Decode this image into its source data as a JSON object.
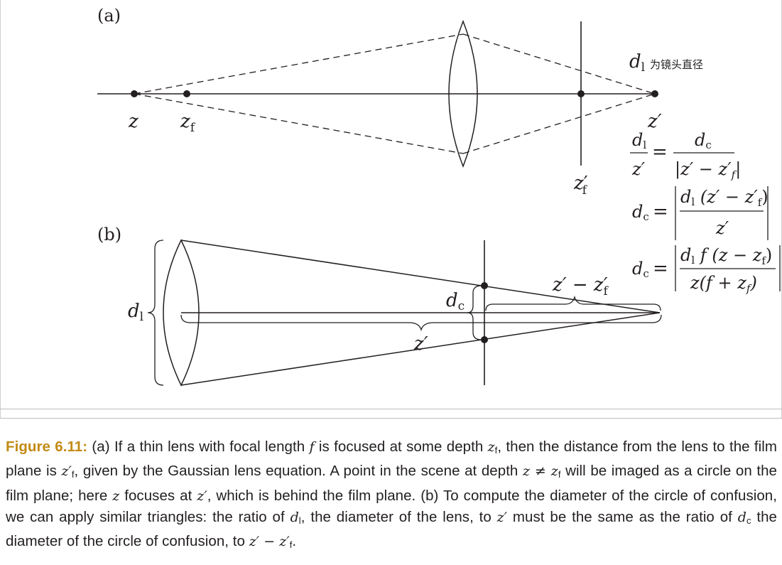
{
  "figure": {
    "panel_a_label": "(a)",
    "panel_b_label": "(b)",
    "point_labels": {
      "z": "z",
      "zf_base": "z",
      "zf_sub": "f",
      "zprime": "z′",
      "zfprime_base": "z",
      "zfprime_prime": "′",
      "zfprime_sub": "f"
    },
    "dl_symbol": "d",
    "dl_sub": "l",
    "dl_annotation": "为镜头直径",
    "equation_1": {
      "lhs_num_base": "d",
      "lhs_num_sub": "l",
      "lhs_den": "z′",
      "equals": "=",
      "rhs_num_base": "d",
      "rhs_num_sub": "c",
      "rhs_den": "|z′ − z′",
      "rhs_den_sub": "f",
      "rhs_den_close": "|"
    },
    "equation_2": {
      "lhs_base": "d",
      "lhs_sub": "c",
      "equals": "=",
      "num": "d",
      "num_sub": "l",
      "num_rest": " (z′ − z′",
      "num_rest_sub": "f",
      "num_close": ")",
      "den": "z′"
    },
    "equation_3": {
      "lhs_base": "d",
      "lhs_sub": "c",
      "equals": "=",
      "num": "d",
      "num_sub": "l",
      "num_rest": " f (z − z",
      "num_rest_sub": "f",
      "num_close": ")",
      "den": "z(f + z",
      "den_sub": "f",
      "den_close": ")"
    },
    "panel_b_labels": {
      "dl": "d",
      "dl_sub": "l",
      "dc": "d",
      "dc_sub": "c",
      "zprime": "z′",
      "zdiff": "z′ − z′",
      "zdiff_sub": "f"
    }
  },
  "caption": {
    "label": "Figure 6.11:",
    "p1": " (a) If a thin lens with focal length ",
    "f": "f",
    "p2": " is focused at some depth ",
    "zf": "z",
    "zf_sub": "f",
    "p3": ", then the distance from the lens to the film plane is ",
    "zfp": "z′",
    "zfp_sub": "f",
    "p4": ", given by the Gaussian lens equation. A point in the scene at depth ",
    "zneq": "z ≠ z",
    "zneq_sub": "f",
    "p5": " will be imaged as a circle on the film plane; here ",
    "z1": "z",
    "p6": " focuses at ",
    "zp1": "z′",
    "p7": ", which is behind the film plane. (b) To compute the diameter of the circle of confusion, we can apply similar triangles: the ratio of ",
    "dl": "d",
    "dl_sub": "l",
    "p8": ", the diameter of the lens, to ",
    "zp2": "z′",
    "p9": " must be the same as the ratio of ",
    "dc": "d",
    "dc_sub": "c",
    "p10": " the diameter of the circle of confusion, to ",
    "zp3": "z′ − z′",
    "zp3_sub": "f",
    "p11": "."
  }
}
